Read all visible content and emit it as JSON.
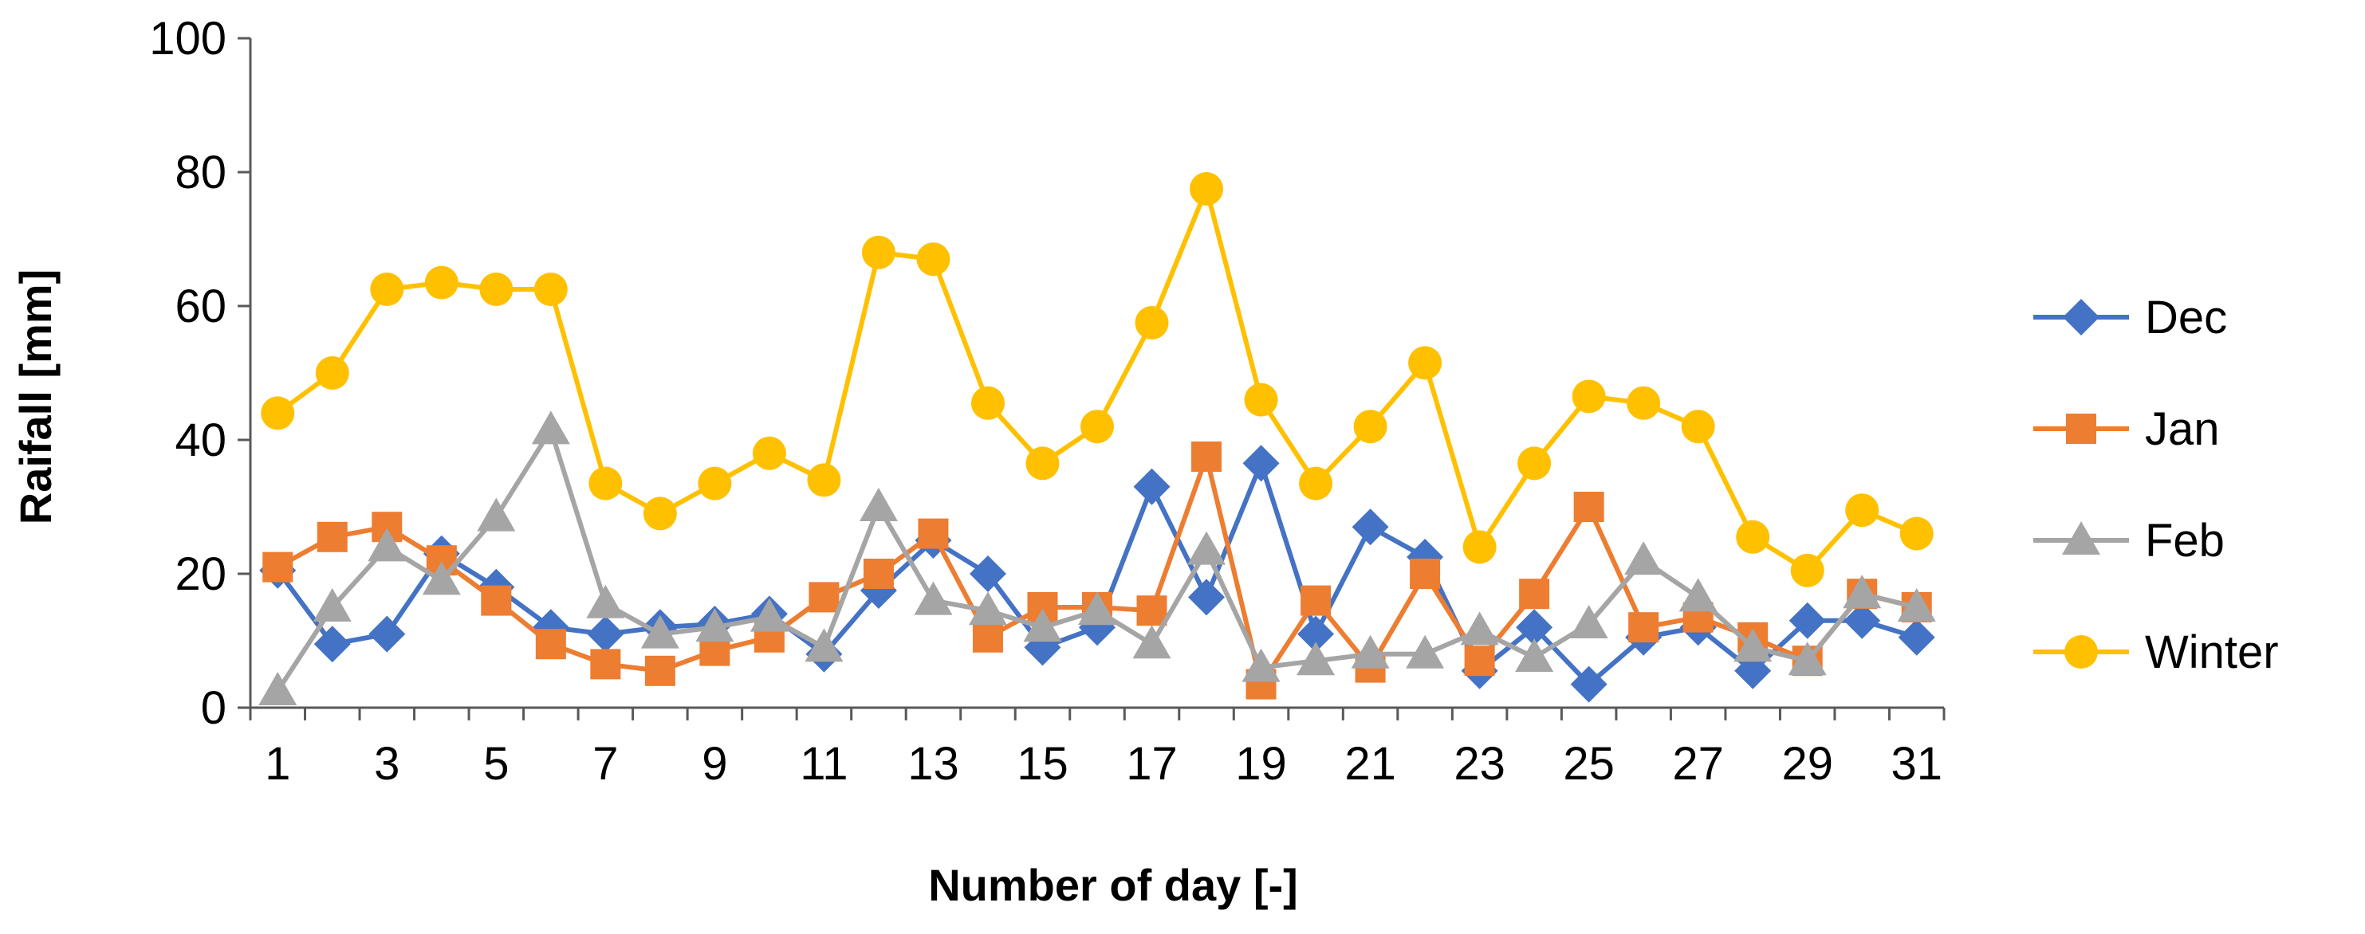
{
  "chart_data": {
    "type": "line",
    "title": "",
    "xlabel": "Number of day [-]",
    "ylabel": "Raifall [mm]",
    "x": [
      1,
      2,
      3,
      4,
      5,
      6,
      7,
      8,
      9,
      10,
      11,
      12,
      13,
      14,
      15,
      16,
      17,
      18,
      19,
      20,
      21,
      22,
      23,
      24,
      25,
      26,
      27,
      28,
      29,
      30,
      31
    ],
    "x_tick_labels": [
      "1",
      "3",
      "5",
      "7",
      "9",
      "11",
      "13",
      "15",
      "17",
      "19",
      "21",
      "23",
      "25",
      "27",
      "29",
      "31"
    ],
    "y_tick_labels": [
      "0",
      "20",
      "40",
      "60",
      "80",
      "100"
    ],
    "xlim": [
      0.5,
      31.5
    ],
    "ylim": [
      0,
      100
    ],
    "grid": false,
    "legend_position": "right",
    "series": [
      {
        "name": "Dec",
        "color": "#4472C4",
        "marker": "diamond",
        "values": [
          20.5,
          9.5,
          11,
          23,
          18,
          12,
          11,
          12,
          12.5,
          14,
          8,
          17.5,
          25,
          20,
          9,
          12,
          33,
          16.5,
          36.5,
          11,
          27,
          22.5,
          5.5,
          12,
          3.5,
          10.5,
          12,
          5.5,
          13,
          13,
          10.5
        ]
      },
      {
        "name": "Jan",
        "color": "#ED7D31",
        "marker": "square",
        "values": [
          21,
          25.5,
          27,
          22,
          16,
          9.5,
          6.5,
          5.5,
          8.5,
          10.5,
          16.5,
          20,
          26,
          10.5,
          15,
          15,
          14.5,
          37.5,
          3.5,
          16,
          6,
          20,
          7,
          17,
          30,
          12,
          13.5,
          10.5,
          7,
          17,
          15
        ]
      },
      {
        "name": "Feb",
        "color": "#A5A5A5",
        "marker": "triangle",
        "values": [
          2.5,
          15,
          24,
          19,
          28.5,
          41.5,
          15.5,
          11,
          12,
          13.5,
          9,
          30,
          16,
          14.5,
          12,
          14.5,
          9.5,
          23.5,
          6,
          7,
          8,
          8,
          11.5,
          7.5,
          12.5,
          22,
          16.5,
          9,
          7,
          17,
          15
        ]
      },
      {
        "name": "Winter",
        "color": "#FFC000",
        "marker": "circle",
        "values": [
          44,
          50,
          62.5,
          63.5,
          62.5,
          62.5,
          33.5,
          29,
          33.5,
          38,
          34,
          68,
          67,
          45.5,
          36.5,
          42,
          57.5,
          77.5,
          46,
          33.5,
          42,
          51.5,
          24,
          36.5,
          46.5,
          45.5,
          42,
          25.5,
          20.5,
          29.5,
          26
        ]
      }
    ]
  }
}
